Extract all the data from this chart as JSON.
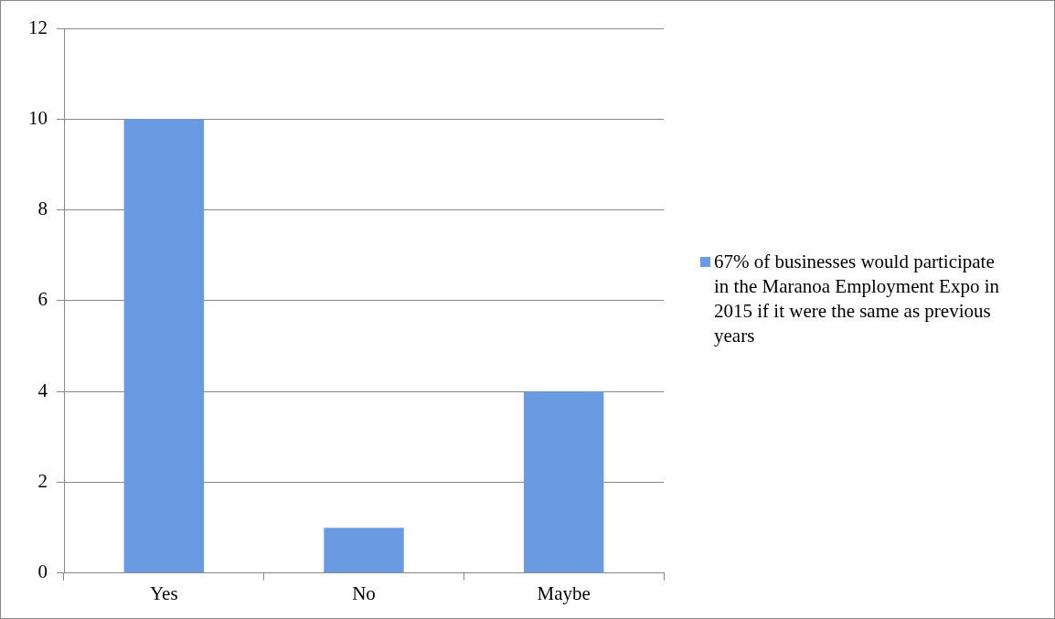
{
  "chart_data": {
    "type": "bar",
    "categories": [
      "Yes",
      "No",
      "Maybe"
    ],
    "series": [
      {
        "name": "67% of businesses would participate in the Maranoa Employment Expo in 2015 if it were the same as previous years",
        "color": "#6a9be2",
        "values": [
          10,
          1,
          4
        ]
      }
    ],
    "ylim": [
      0,
      12
    ],
    "yticks": [
      0,
      2,
      4,
      6,
      8,
      10,
      12
    ],
    "grid": "y",
    "legend": "right"
  }
}
